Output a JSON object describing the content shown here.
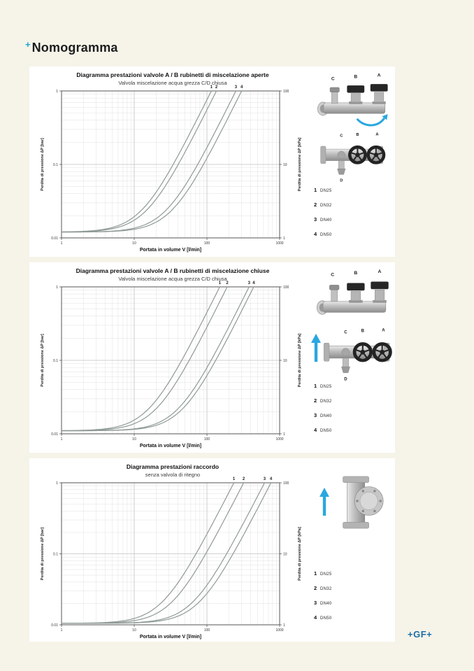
{
  "page": {
    "heading_plus": "+",
    "heading": "Nomogramma",
    "footer_logo": "+GF+",
    "accent_cyan": "#1ba8cf",
    "logo_blue": "#1d6da6",
    "background": "#f6f4e9"
  },
  "chart_data": [
    {
      "type": "line",
      "title": "Diagramma prestazioni valvole A / B rubinetti di miscelazione aperte",
      "subtitle": "Valvola miscelazione acqua grezza C/D chiusa",
      "xlabel": "Portata in volume V [l/min]",
      "ylabel_left": "Perdita di pressione ΔP  [bar]",
      "ylabel_right": "Perdita di pressione ΔP  [kPa]",
      "x_ticks": [
        1,
        10,
        100,
        1000
      ],
      "y_ticks_bar": [
        "1",
        "0.1",
        "0.01"
      ],
      "y_ticks_kpa": [
        "100",
        "10",
        "1"
      ],
      "xlim": [
        1,
        1000
      ],
      "ylim_bar": [
        0.01,
        1
      ],
      "grid": "log-log with minor lines",
      "legend_position": "right",
      "curve_color": "#8f9a96",
      "floor_bar": 0.012,
      "series": [
        {
          "label": "1",
          "dn": "DN25",
          "v_at_1bar_lmin": 115
        },
        {
          "label": "2",
          "dn": "DN32",
          "v_at_1bar_lmin": 135
        },
        {
          "label": "3",
          "dn": "DN40",
          "v_at_1bar_lmin": 250
        },
        {
          "label": "4",
          "dn": "DN50",
          "v_at_1bar_lmin": 300
        }
      ],
      "legend": [
        {
          "num": "1",
          "size": "DN25"
        },
        {
          "num": "2",
          "size": "DN32"
        },
        {
          "num": "3",
          "size": "DN40"
        },
        {
          "num": "4",
          "size": "DN50"
        }
      ],
      "images": {
        "top_labels": [
          "C",
          "B",
          "A"
        ],
        "bottom_labels": [
          "C",
          "B",
          "A",
          "D"
        ],
        "arrow": "rotate-clockwise"
      }
    },
    {
      "type": "line",
      "title": "Diagramma prestazioni valvole A / B rubinetti di miscelazione chiuse",
      "subtitle": "Valvola miscelazione acqua grezza C/D chiusa",
      "xlabel": "Portata in volume V [l/min]",
      "ylabel_left": "Perdita di pressione ΔP  [bar]",
      "ylabel_right": "Perdita di pressione ΔP  [kPa]",
      "x_ticks": [
        1,
        10,
        100,
        1000
      ],
      "y_ticks_bar": [
        "1",
        "0.1",
        "0.01"
      ],
      "y_ticks_kpa": [
        "100",
        "10",
        "1"
      ],
      "xlim": [
        1,
        1000
      ],
      "ylim_bar": [
        0.01,
        1
      ],
      "grid": "log-log with minor lines",
      "legend_position": "right",
      "curve_color": "#8f9a96",
      "floor_bar": 0.011,
      "series": [
        {
          "label": "1",
          "dn": "DN25",
          "v_at_1bar_lmin": 150
        },
        {
          "label": "2",
          "dn": "DN32",
          "v_at_1bar_lmin": 190
        },
        {
          "label": "3",
          "dn": "DN40",
          "v_at_1bar_lmin": 380
        },
        {
          "label": "4",
          "dn": "DN50",
          "v_at_1bar_lmin": 440
        }
      ],
      "legend": [
        {
          "num": "1",
          "size": "DN25"
        },
        {
          "num": "2",
          "size": "DN32"
        },
        {
          "num": "3",
          "size": "DN40"
        },
        {
          "num": "4",
          "size": "DN50"
        }
      ],
      "images": {
        "top_labels": [
          "C",
          "B",
          "A"
        ],
        "bottom_labels": [
          "C",
          "B",
          "A",
          "D"
        ],
        "arrow": "flow-up"
      }
    },
    {
      "type": "line",
      "title": "Diagramma prestazioni raccordo",
      "subtitle": "senza valvola di ritegno",
      "xlabel": "Portata in volume V [l/min]",
      "ylabel_left": "Perdita di pressione ΔP  [bar]",
      "ylabel_right": "Perdita di pressione ΔP  [kPa]",
      "x_ticks": [
        1,
        10,
        100,
        1000
      ],
      "y_ticks_bar": [
        "1",
        "0.1",
        "0.01"
      ],
      "y_ticks_kpa": [
        "100",
        "10",
        "1"
      ],
      "xlim": [
        1,
        1000
      ],
      "ylim_bar": [
        0.01,
        1
      ],
      "grid": "log-log with minor lines",
      "legend_position": "right",
      "curve_color": "#8f9a96",
      "floor_bar": 0.0105,
      "series": [
        {
          "label": "1",
          "dn": "DN25",
          "v_at_1bar_lmin": 235
        },
        {
          "label": "2",
          "dn": "DN32",
          "v_at_1bar_lmin": 320
        },
        {
          "label": "3",
          "dn": "DN40",
          "v_at_1bar_lmin": 620
        },
        {
          "label": "4",
          "dn": "DN50",
          "v_at_1bar_lmin": 760
        }
      ],
      "legend": [
        {
          "num": "1",
          "size": "DN25"
        },
        {
          "num": "2",
          "size": "DN32"
        },
        {
          "num": "3",
          "size": "DN40"
        },
        {
          "num": "4",
          "size": "DN50"
        }
      ],
      "images": {
        "arrow": "flow-up"
      }
    }
  ]
}
